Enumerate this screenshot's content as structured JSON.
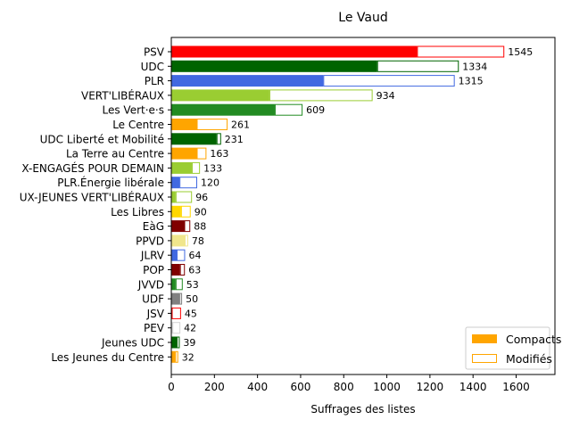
{
  "chart_data": {
    "type": "bar",
    "orientation": "horizontal",
    "stacked": true,
    "title": "Le Vaud",
    "xlabel": "Suffrages des listes",
    "ylabel": "",
    "xlim": [
      0,
      1780
    ],
    "xticks": [
      0,
      200,
      400,
      600,
      800,
      1000,
      1200,
      1400,
      1600
    ],
    "grid": false,
    "legend_position": "lower-right",
    "legend": [
      {
        "label": "Compacts",
        "style": "filled",
        "color": "#FFA500"
      },
      {
        "label": "Modifiés",
        "style": "outline",
        "color": "#FFA500"
      }
    ],
    "categories": [
      "PSV",
      "UDC",
      "PLR",
      "VERT'LIBÉRAUX",
      "Les Vert·e·s",
      "Le Centre",
      "UDC Liberté et Mobilité",
      "La Terre au Centre",
      "X-ENGAGÉS POUR DEMAIN",
      "PLR.Énergie libérale",
      "UX-JEUNES VERT'LIBÉRAUX",
      "Les Libres",
      "EàG",
      "PPVD",
      "JLRV",
      "POP",
      "JVVD",
      "UDF",
      "JSV",
      "PEV",
      "Jeunes UDC",
      "Les Jeunes du Centre"
    ],
    "totals": [
      1545,
      1334,
      1315,
      934,
      609,
      261,
      231,
      163,
      133,
      120,
      96,
      90,
      88,
      78,
      64,
      63,
      53,
      50,
      45,
      42,
      39,
      32
    ],
    "series": [
      {
        "name": "Compacts",
        "values": [
          1140,
          955,
          705,
          455,
          480,
          118,
          210,
          118,
          95,
          38,
          20,
          45,
          60,
          62,
          25,
          40,
          20,
          38,
          2,
          5,
          25,
          18
        ]
      },
      {
        "name": "Modifiés",
        "values": [
          405,
          379,
          610,
          479,
          129,
          143,
          21,
          45,
          38,
          82,
          76,
          45,
          28,
          16,
          39,
          23,
          33,
          12,
          43,
          37,
          14,
          14
        ]
      }
    ],
    "colors": [
      "#FF0000",
      "#006400",
      "#4169E1",
      "#9ACD32",
      "#228B22",
      "#FFA500",
      "#006400",
      "#FFA500",
      "#9ACD32",
      "#4169E1",
      "#9ACD32",
      "#FFD700",
      "#800000",
      "#F0E68C",
      "#4169E1",
      "#800000",
      "#228B22",
      "#808080",
      "#FF0000",
      "#D3D3D3",
      "#006400",
      "#FFA500"
    ]
  }
}
